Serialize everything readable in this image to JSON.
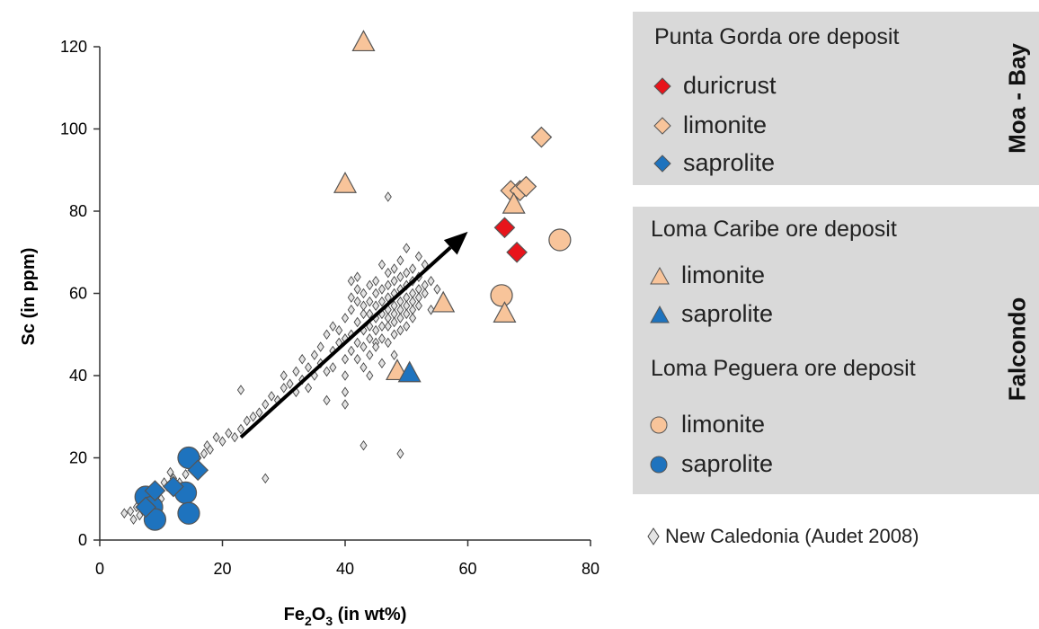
{
  "chart_data": {
    "type": "scatter",
    "xlabel": "Fe2O3 (in wt%)",
    "xlabel_main": "Fe",
    "xlabel_sub1": "2",
    "xlabel_mid": "O",
    "xlabel_sub2": "3",
    "xlabel_tail": " (in wt%)",
    "ylabel": "Sc (in ppm)",
    "xlim": [
      0,
      80
    ],
    "ylim": [
      0,
      120
    ],
    "xticks": [
      0,
      20,
      40,
      60,
      80
    ],
    "yticks": [
      0,
      20,
      40,
      60,
      80,
      100,
      120
    ],
    "grid": false,
    "colors": {
      "red": "#e8141b",
      "peach": "#f8c49a",
      "blue": "#1e73be",
      "nc": "#e4e4e4",
      "legend_bg": "#d9d9d9"
    },
    "trend_arrow": {
      "from": [
        23,
        25
      ],
      "to": [
        60,
        75
      ]
    },
    "series": [
      {
        "name": "Punta Gorda ore deposit - duricrust",
        "marker": "diamond",
        "color": "red",
        "points": [
          [
            66,
            76
          ],
          [
            68,
            70
          ]
        ]
      },
      {
        "name": "Punta Gorda ore deposit - limonite",
        "marker": "diamond",
        "color": "peach",
        "points": [
          [
            72,
            98
          ],
          [
            67,
            85
          ],
          [
            68.5,
            85
          ],
          [
            69.5,
            86
          ]
        ]
      },
      {
        "name": "Punta Gorda ore deposit - saprolite",
        "marker": "diamond",
        "color": "blue",
        "points": [
          [
            16,
            17
          ],
          [
            9,
            12
          ],
          [
            12,
            13
          ],
          [
            7.5,
            8
          ]
        ]
      },
      {
        "name": "Loma Caribe ore deposit - limonite",
        "marker": "triangle",
        "color": "peach",
        "points": [
          [
            43,
            121
          ],
          [
            40,
            86.5
          ],
          [
            67.5,
            81.5
          ],
          [
            56,
            57.5
          ],
          [
            66,
            55
          ],
          [
            48.5,
            41
          ]
        ]
      },
      {
        "name": "Loma Caribe ore deposit - saprolite",
        "marker": "triangle",
        "color": "blue",
        "points": [
          [
            50.5,
            40.5
          ]
        ]
      },
      {
        "name": "Loma Peguera ore deposit - limonite",
        "marker": "circle",
        "color": "peach",
        "points": [
          [
            75,
            73
          ],
          [
            65.5,
            59.5
          ]
        ]
      },
      {
        "name": "Loma Peguera ore deposit - saprolite",
        "marker": "circle",
        "color": "blue",
        "points": [
          [
            14.5,
            20
          ],
          [
            7.5,
            10.5
          ],
          [
            8.5,
            8
          ],
          [
            14,
            11.5
          ],
          [
            14.5,
            6.5
          ],
          [
            9,
            5
          ]
        ]
      },
      {
        "name": "New Caledonia (Audet 2008)",
        "marker": "small-diamond",
        "color": "nc",
        "points": [
          [
            4,
            6.5
          ],
          [
            5,
            7
          ],
          [
            5.5,
            5
          ],
          [
            6,
            8
          ],
          [
            6.5,
            6
          ],
          [
            7,
            9
          ],
          [
            7.5,
            7
          ],
          [
            8,
            10
          ],
          [
            8.5,
            12
          ],
          [
            9,
            11
          ],
          [
            10,
            10
          ],
          [
            10.5,
            14
          ],
          [
            11,
            13
          ],
          [
            11.5,
            16.5
          ],
          [
            12,
            15
          ],
          [
            13,
            14
          ],
          [
            14,
            16
          ],
          [
            15,
            18
          ],
          [
            16,
            20
          ],
          [
            17,
            21
          ],
          [
            17.5,
            23
          ],
          [
            18,
            22
          ],
          [
            19,
            25
          ],
          [
            20,
            24
          ],
          [
            21,
            26
          ],
          [
            22,
            25
          ],
          [
            23,
            27
          ],
          [
            24,
            29
          ],
          [
            23,
            36.5
          ],
          [
            25,
            30
          ],
          [
            26,
            31
          ],
          [
            27,
            15
          ],
          [
            27,
            33
          ],
          [
            28,
            35
          ],
          [
            29,
            34
          ],
          [
            30,
            37
          ],
          [
            30,
            40
          ],
          [
            31,
            38
          ],
          [
            32,
            41
          ],
          [
            32,
            36
          ],
          [
            33,
            39
          ],
          [
            33,
            44
          ],
          [
            34,
            42
          ],
          [
            34,
            37
          ],
          [
            35,
            45
          ],
          [
            35,
            40
          ],
          [
            36,
            43
          ],
          [
            36,
            47
          ],
          [
            37,
            41
          ],
          [
            37,
            50
          ],
          [
            37,
            34
          ],
          [
            38,
            46
          ],
          [
            38,
            52
          ],
          [
            38,
            42
          ],
          [
            39,
            48
          ],
          [
            39,
            51
          ],
          [
            40,
            49
          ],
          [
            40,
            54
          ],
          [
            40,
            44
          ],
          [
            40,
            36
          ],
          [
            40,
            33
          ],
          [
            40,
            40
          ],
          [
            41,
            50
          ],
          [
            41,
            56
          ],
          [
            41,
            46
          ],
          [
            41,
            63
          ],
          [
            41,
            59
          ],
          [
            42,
            53
          ],
          [
            42,
            48
          ],
          [
            42,
            58
          ],
          [
            42,
            44
          ],
          [
            42,
            61
          ],
          [
            42,
            64
          ],
          [
            43,
            51
          ],
          [
            43,
            55
          ],
          [
            43,
            60
          ],
          [
            43,
            47
          ],
          [
            43,
            57
          ],
          [
            43,
            42
          ],
          [
            43,
            23
          ],
          [
            44,
            52
          ],
          [
            44,
            58
          ],
          [
            44,
            49
          ],
          [
            44,
            62
          ],
          [
            44,
            55
          ],
          [
            44,
            45
          ],
          [
            44,
            40
          ],
          [
            45,
            54
          ],
          [
            45,
            57
          ],
          [
            45,
            51
          ],
          [
            45,
            60
          ],
          [
            45,
            48
          ],
          [
            45,
            63
          ],
          [
            45,
            47
          ],
          [
            46,
            55
          ],
          [
            46,
            58
          ],
          [
            46,
            52
          ],
          [
            46,
            61
          ],
          [
            46,
            49
          ],
          [
            46,
            67
          ],
          [
            46,
            43
          ],
          [
            47,
            56
          ],
          [
            47,
            54
          ],
          [
            47,
            59
          ],
          [
            47,
            52
          ],
          [
            47,
            62
          ],
          [
            47,
            65
          ],
          [
            47,
            48
          ],
          [
            47,
            83.5
          ],
          [
            48,
            57
          ],
          [
            48,
            55
          ],
          [
            48,
            60
          ],
          [
            48,
            53
          ],
          [
            48,
            63
          ],
          [
            48,
            50
          ],
          [
            48,
            66
          ],
          [
            48,
            45
          ],
          [
            49,
            58
          ],
          [
            49,
            56
          ],
          [
            49,
            61
          ],
          [
            49,
            54
          ],
          [
            49,
            64
          ],
          [
            49,
            51
          ],
          [
            49,
            68
          ],
          [
            49,
            21
          ],
          [
            50,
            59
          ],
          [
            50,
            57
          ],
          [
            50,
            62
          ],
          [
            50,
            55
          ],
          [
            50,
            65
          ],
          [
            50,
            52
          ],
          [
            50,
            71
          ],
          [
            51,
            60
          ],
          [
            51,
            58
          ],
          [
            51,
            63
          ],
          [
            51,
            56
          ],
          [
            51,
            66
          ],
          [
            51,
            54
          ],
          [
            52,
            61
          ],
          [
            52,
            59
          ],
          [
            52,
            64
          ],
          [
            52,
            57
          ],
          [
            53,
            62
          ],
          [
            53,
            60
          ],
          [
            54,
            63
          ],
          [
            54,
            56
          ],
          [
            55,
            61
          ],
          [
            53,
            67
          ],
          [
            52,
            69
          ]
        ]
      }
    ]
  },
  "legend": {
    "box1_title": "Punta Gorda ore deposit",
    "box1_items": [
      "duricrust",
      "limonite",
      "saprolite"
    ],
    "box1_group": "Moa - Bay",
    "box2_title1": "Loma Caribe ore deposit",
    "box2_items1": [
      "limonite",
      "saprolite"
    ],
    "box2_title2": "Loma Peguera ore deposit",
    "box2_items2": [
      "limonite",
      "saprolite"
    ],
    "box2_group": "Falcondo",
    "nc_label": "New Caledonia (Audet 2008)"
  }
}
